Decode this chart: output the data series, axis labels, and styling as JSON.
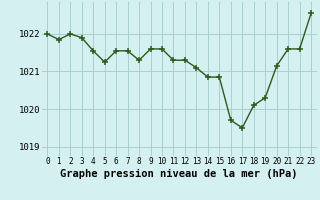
{
  "x": [
    0,
    1,
    2,
    3,
    4,
    5,
    6,
    7,
    8,
    9,
    10,
    11,
    12,
    13,
    14,
    15,
    16,
    17,
    18,
    19,
    20,
    21,
    22,
    23
  ],
  "y": [
    1022.0,
    1021.85,
    1022.0,
    1021.9,
    1021.55,
    1021.25,
    1021.55,
    1021.55,
    1021.3,
    1021.6,
    1021.6,
    1021.3,
    1021.3,
    1021.1,
    1020.85,
    1020.85,
    1019.7,
    1019.5,
    1020.1,
    1020.3,
    1021.15,
    1021.6,
    1021.6,
    1022.55
  ],
  "line_color": "#2d5a1b",
  "marker_color": "#2d5a1b",
  "bg_color": "#d4f0f0",
  "grid_color": "#aacfcf",
  "title": "Graphe pression niveau de la mer (hPa)",
  "ylim_min": 1018.75,
  "ylim_max": 1022.85,
  "yticks": [
    1019,
    1020,
    1021,
    1022
  ],
  "xtick_fontsize": 5.5,
  "ytick_fontsize": 6.5,
  "title_fontsize": 7.5
}
